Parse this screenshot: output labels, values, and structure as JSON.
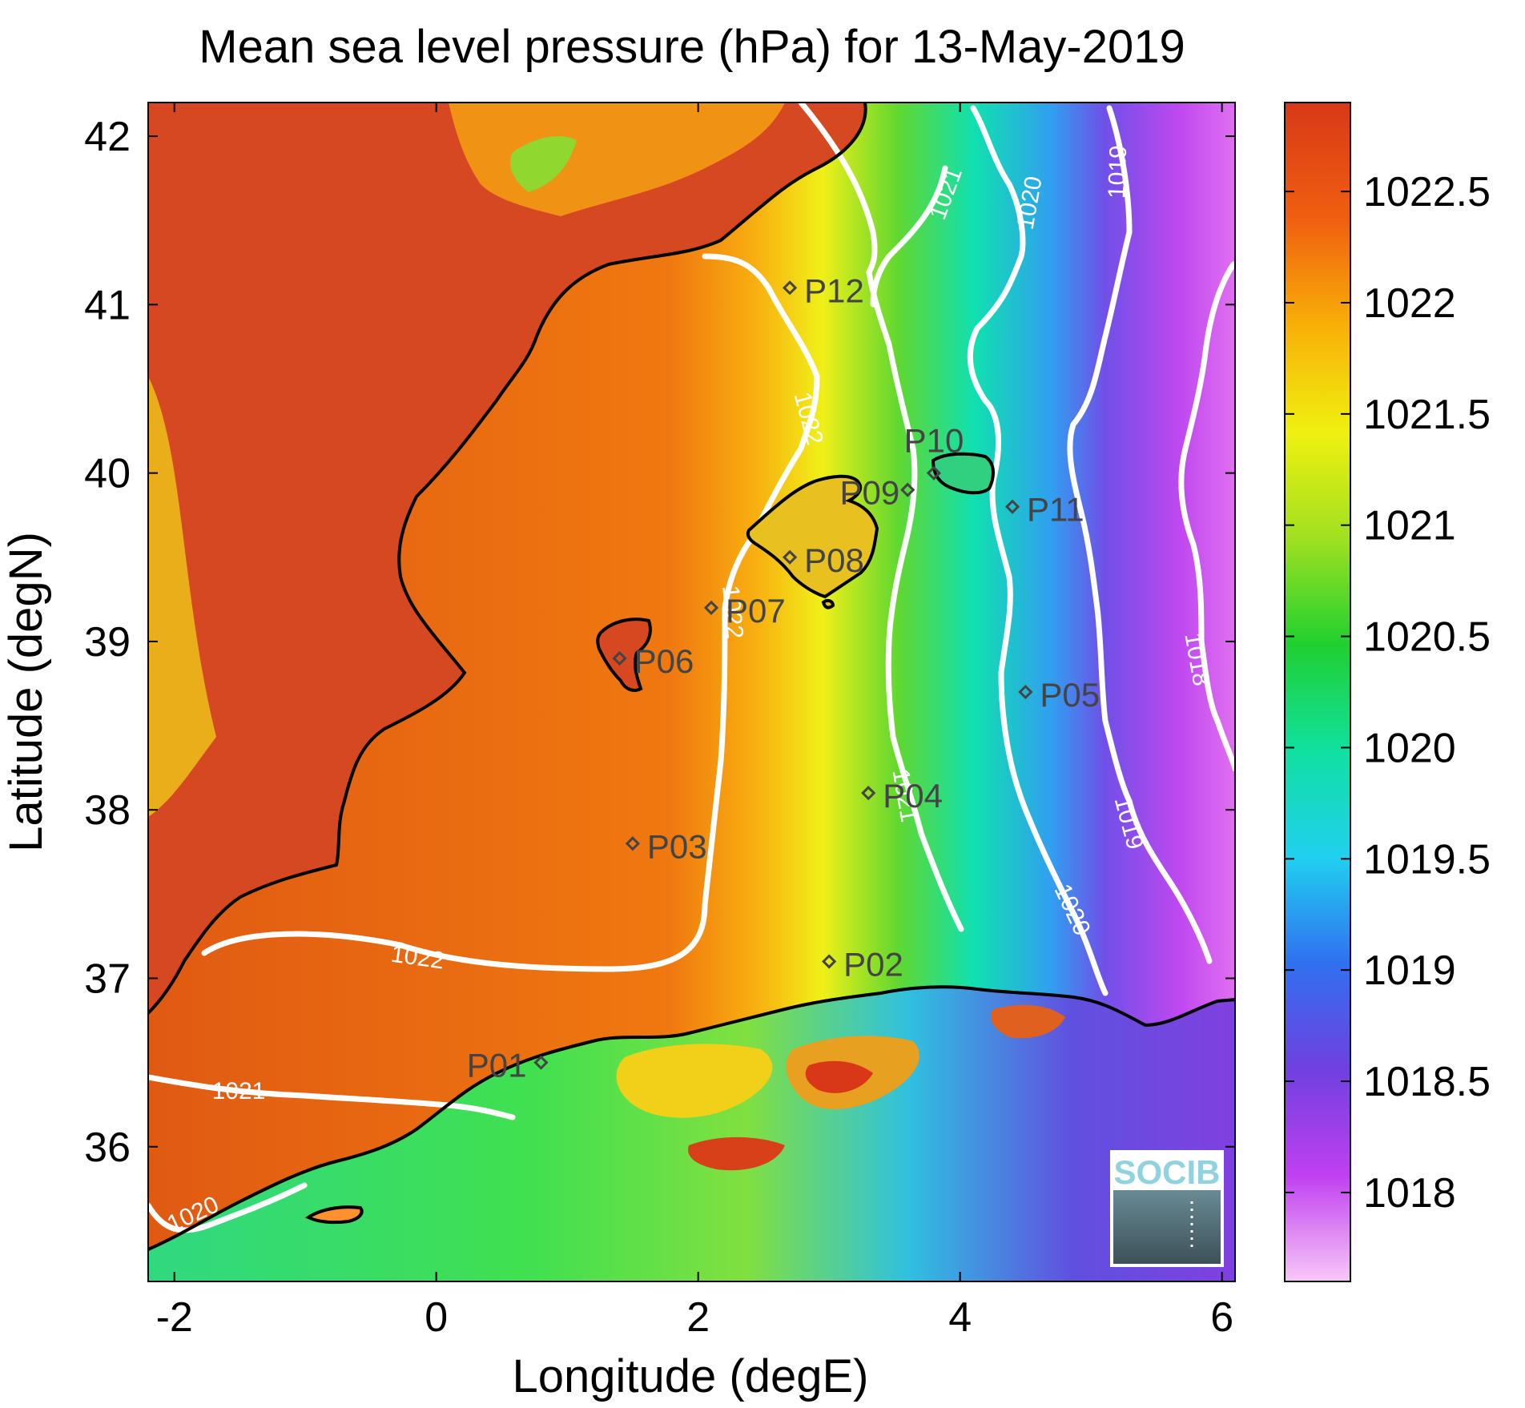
{
  "title": "Mean sea level pressure (hPa) for 13-May-2019",
  "colors": {
    "land_high": "#d9451e",
    "sea_high": "#e35a10",
    "contour": "#ffffff",
    "coastline": "#000000",
    "station_marker": "#444444",
    "logo_bg": "#5f7c86"
  },
  "colorbar": {
    "range": [
      1017.6,
      1022.9
    ],
    "ticks": [
      "1018",
      "1018.5",
      "1019",
      "1019.5",
      "1020",
      "1020.5",
      "1021",
      "1021.5",
      "1022",
      "1022.5"
    ],
    "colormap": [
      "#f8c8f8",
      "#c040f0",
      "#7040e0",
      "#3070f0",
      "#20d0f0",
      "#10e0a0",
      "#20d030",
      "#a0e020",
      "#f0f010",
      "#f8b008",
      "#f06010",
      "#d83818"
    ]
  },
  "chart_data": {
    "type": "heatmap",
    "title": "Mean sea level pressure (hPa) for 13-May-2019",
    "xlabel": "Longitude (degE)",
    "ylabel": "Latitude (degN)",
    "xlim": [
      -2.2,
      6.1
    ],
    "ylim": [
      35.2,
      42.2
    ],
    "xticks": [
      "-2",
      "0",
      "2",
      "4",
      "6"
    ],
    "yticks": [
      "36",
      "37",
      "38",
      "39",
      "40",
      "41",
      "42"
    ],
    "contour_labels": [
      "1022",
      "1022",
      "1022",
      "1021",
      "1021",
      "1021",
      "1020",
      "1020",
      "1020",
      "1019",
      "1019",
      "1018"
    ],
    "stations": [
      {
        "name": "P01",
        "lon": 0.8,
        "lat": 36.5
      },
      {
        "name": "P02",
        "lon": 3.0,
        "lat": 37.1
      },
      {
        "name": "P03",
        "lon": 1.5,
        "lat": 37.8
      },
      {
        "name": "P04",
        "lon": 3.3,
        "lat": 38.1
      },
      {
        "name": "P05",
        "lon": 4.5,
        "lat": 38.7
      },
      {
        "name": "P06",
        "lon": 1.4,
        "lat": 38.9
      },
      {
        "name": "P07",
        "lon": 2.1,
        "lat": 39.2
      },
      {
        "name": "P08",
        "lon": 2.7,
        "lat": 39.5
      },
      {
        "name": "P09",
        "lon": 3.6,
        "lat": 39.9
      },
      {
        "name": "P10",
        "lon": 3.8,
        "lat": 40.0
      },
      {
        "name": "P11",
        "lon": 4.4,
        "lat": 39.8
      },
      {
        "name": "P12",
        "lon": 2.7,
        "lat": 41.1
      }
    ]
  },
  "logo": {
    "text": "SOCIB"
  }
}
